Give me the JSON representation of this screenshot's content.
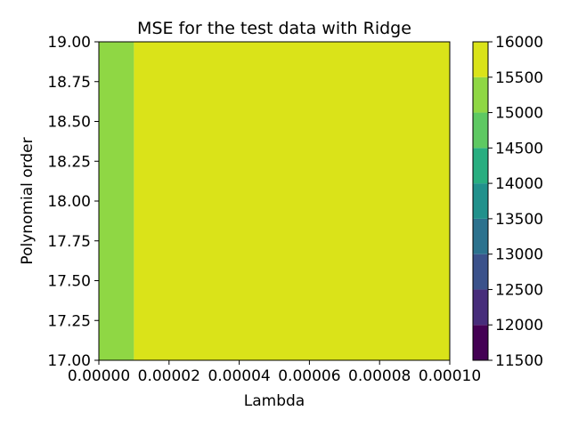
{
  "chart_data": {
    "type": "heatmap",
    "title": "MSE for the test data with Ridge",
    "xlabel": "Lambda",
    "ylabel": "Polynomial order",
    "xlim": [
      0.0,
      0.0001
    ],
    "ylim": [
      17.0,
      19.0
    ],
    "x_ticks": [
      "0.00000",
      "0.00002",
      "0.00004",
      "0.00006",
      "0.00008",
      "0.00010"
    ],
    "x_tick_values": [
      0.0,
      2e-05,
      4e-05,
      6e-05,
      8e-05,
      0.0001
    ],
    "y_ticks": [
      "17.00",
      "17.25",
      "17.50",
      "17.75",
      "18.00",
      "18.25",
      "18.50",
      "18.75",
      "19.00"
    ],
    "y_tick_values": [
      17.0,
      17.25,
      17.5,
      17.75,
      18.0,
      18.25,
      18.5,
      18.75,
      19.0
    ],
    "regions": [
      {
        "x_range": [
          0.0,
          1e-05
        ],
        "y_range": [
          17.0,
          19.0
        ],
        "level_range": [
          15000,
          15500
        ],
        "color": "#8fd744"
      },
      {
        "x_range": [
          1e-05,
          0.0001
        ],
        "y_range": [
          17.0,
          19.0
        ],
        "level_range": [
          15500,
          16000
        ],
        "color": "#dae319"
      }
    ],
    "colorbar": {
      "ticks": [
        "11500",
        "12000",
        "12500",
        "13000",
        "13500",
        "14000",
        "14500",
        "15000",
        "15500",
        "16000"
      ],
      "levels": [
        11500,
        12000,
        12500,
        13000,
        13500,
        14000,
        14500,
        15000,
        15500,
        16000
      ],
      "colors": [
        "#440154",
        "#472d7b",
        "#3b528b",
        "#2c728e",
        "#21918c",
        "#28ae80",
        "#5ec962",
        "#8fd744",
        "#dae319"
      ]
    }
  }
}
